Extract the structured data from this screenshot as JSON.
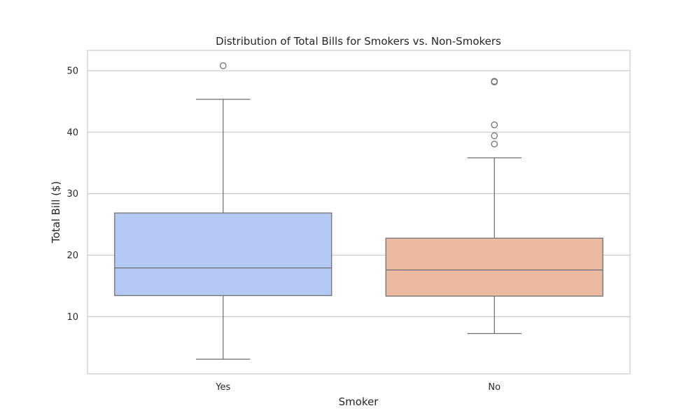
{
  "chart_data": {
    "type": "box",
    "title": "Distribution of Total Bills for Smokers vs. Non-Smokers",
    "xlabel": "Smoker",
    "ylabel": "Total Bill ($)",
    "categories": [
      "Yes",
      "No"
    ],
    "ylim": [
      0.7,
      53.3
    ],
    "yticks": [
      10,
      20,
      30,
      40,
      50
    ],
    "grid": true,
    "boxes": [
      {
        "category": "Yes",
        "whisker_low": 3.07,
        "q1": 13.42,
        "median": 17.92,
        "q3": 26.86,
        "whisker_high": 45.35,
        "outliers": [
          50.81
        ],
        "color": "#b3c8f3"
      },
      {
        "category": "No",
        "whisker_low": 7.25,
        "q1": 13.33,
        "median": 17.59,
        "q3": 22.76,
        "whisker_high": 35.83,
        "outliers": [
          38.07,
          39.42,
          41.19,
          48.17,
          48.27
        ],
        "color": "#ecb9a1"
      }
    ]
  }
}
